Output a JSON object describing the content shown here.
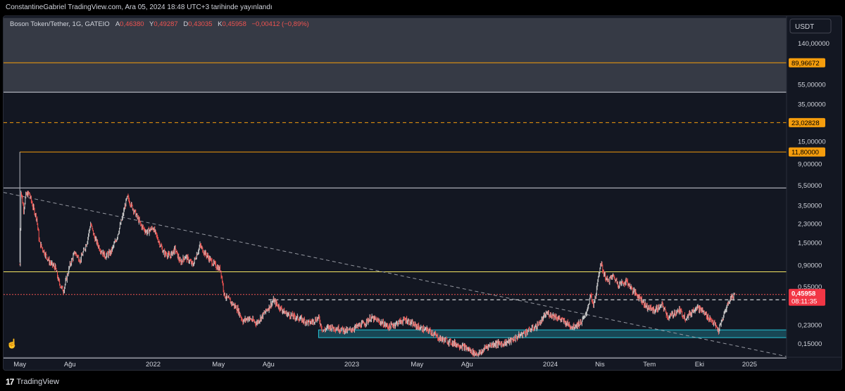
{
  "header": {
    "publish_line": "ConstantineGabriel TradingView.com, Ara 05, 2024 18:48 UTC+3 tarihinde yayınlandı"
  },
  "legend": {
    "symbol": "Boson Token/Tether, 1G, GATEIO",
    "o_key": "A",
    "o_val": "0,46380",
    "h_key": "Y",
    "h_val": "0,49287",
    "l_key": "D",
    "l_val": "0,43035",
    "c_key": "K",
    "c_val": "0,45958",
    "change": "−0,00412 (−0,89%)"
  },
  "footer": {
    "brand": "TradingView"
  },
  "colors": {
    "background": "#131722",
    "candle_up": "#c8c8c8",
    "candle_down": "#ef5350",
    "accent_orange": "#f59d0d",
    "accent_yellow": "#f5e663",
    "zone": "#26c6da",
    "price_red": "#f23645"
  },
  "chart_data": {
    "type": "candlestick",
    "title": "Boson Token/Tether, 1G, GATEIO",
    "currency": "USDT",
    "y_scale": "log",
    "ylim": [
      0.11,
      260
    ],
    "xlim": [
      "2021-04-01",
      "2025-03-10"
    ],
    "grid": false,
    "x_ticks": [
      {
        "label": "May",
        "date": "2021-05-01"
      },
      {
        "label": "Ağu",
        "date": "2021-08-01"
      },
      {
        "label": "2022",
        "date": "2022-01-01"
      },
      {
        "label": "May",
        "date": "2022-05-01"
      },
      {
        "label": "Ağu",
        "date": "2022-08-01"
      },
      {
        "label": "2023",
        "date": "2023-01-01"
      },
      {
        "label": "May",
        "date": "2023-05-01"
      },
      {
        "label": "Ağu",
        "date": "2023-08-01"
      },
      {
        "label": "2024",
        "date": "2024-01-01"
      },
      {
        "label": "Nis",
        "date": "2024-04-01"
      },
      {
        "label": "Tem",
        "date": "2024-07-01"
      },
      {
        "label": "Eki",
        "date": "2024-10-01"
      },
      {
        "label": "2025",
        "date": "2025-01-01"
      }
    ],
    "y_ticks": [
      {
        "label": "140,00000",
        "value": 140
      },
      {
        "label": "55,00000",
        "value": 55
      },
      {
        "label": "35,00000",
        "value": 35
      },
      {
        "label": "15,00000",
        "value": 15
      },
      {
        "label": "9,00000",
        "value": 9
      },
      {
        "label": "5,50000",
        "value": 5.5
      },
      {
        "label": "3,50000",
        "value": 3.5
      },
      {
        "label": "2,30000",
        "value": 2.3
      },
      {
        "label": "1,50000",
        "value": 1.5
      },
      {
        "label": "0,90000",
        "value": 0.9
      },
      {
        "label": "0,55000",
        "value": 0.55
      },
      {
        "label": "0,23000",
        "value": 0.23
      },
      {
        "label": "0,15000",
        "value": 0.15
      }
    ],
    "price_path": [
      [
        "2021-05-01",
        0.9
      ],
      [
        "2021-05-03",
        4.9
      ],
      [
        "2021-05-08",
        3.2
      ],
      [
        "2021-05-12",
        4.4
      ],
      [
        "2021-05-18",
        4.6
      ],
      [
        "2021-05-25",
        3.4
      ],
      [
        "2021-06-01",
        2.6
      ],
      [
        "2021-06-06",
        1.5
      ],
      [
        "2021-06-15",
        1.2
      ],
      [
        "2021-06-25",
        0.95
      ],
      [
        "2021-07-05",
        0.85
      ],
      [
        "2021-07-12",
        0.6
      ],
      [
        "2021-07-20",
        0.5
      ],
      [
        "2021-08-01",
        0.9
      ],
      [
        "2021-08-10",
        1.2
      ],
      [
        "2021-08-20",
        1.0
      ],
      [
        "2021-09-01",
        1.5
      ],
      [
        "2021-09-08",
        2.3
      ],
      [
        "2021-09-15",
        1.7
      ],
      [
        "2021-09-25",
        1.3
      ],
      [
        "2021-10-05",
        1.1
      ],
      [
        "2021-10-15",
        1.2
      ],
      [
        "2021-10-25",
        1.6
      ],
      [
        "2021-11-05",
        2.6
      ],
      [
        "2021-11-12",
        3.8
      ],
      [
        "2021-11-15",
        4.2
      ],
      [
        "2021-11-22",
        3.5
      ],
      [
        "2021-12-01",
        2.8
      ],
      [
        "2021-12-10",
        2.2
      ],
      [
        "2021-12-20",
        1.9
      ],
      [
        "2022-01-01",
        2.1
      ],
      [
        "2022-01-10",
        1.6
      ],
      [
        "2022-01-20",
        1.2
      ],
      [
        "2022-02-01",
        1.1
      ],
      [
        "2022-02-10",
        1.3
      ],
      [
        "2022-02-20",
        0.95
      ],
      [
        "2022-03-01",
        1.1
      ],
      [
        "2022-03-15",
        0.9
      ],
      [
        "2022-03-28",
        1.4
      ],
      [
        "2022-04-05",
        1.2
      ],
      [
        "2022-04-20",
        0.95
      ],
      [
        "2022-05-05",
        0.8
      ],
      [
        "2022-05-12",
        0.45
      ],
      [
        "2022-05-25",
        0.38
      ],
      [
        "2022-06-05",
        0.33
      ],
      [
        "2022-06-15",
        0.25
      ],
      [
        "2022-06-25",
        0.27
      ],
      [
        "2022-07-10",
        0.24
      ],
      [
        "2022-07-20",
        0.28
      ],
      [
        "2022-08-01",
        0.34
      ],
      [
        "2022-08-10",
        0.4
      ],
      [
        "2022-08-20",
        0.35
      ],
      [
        "2022-09-01",
        0.3
      ],
      [
        "2022-09-15",
        0.28
      ],
      [
        "2022-10-01",
        0.26
      ],
      [
        "2022-10-15",
        0.24
      ],
      [
        "2022-11-01",
        0.27
      ],
      [
        "2022-11-09",
        0.2
      ],
      [
        "2022-11-20",
        0.22
      ],
      [
        "2022-12-10",
        0.21
      ],
      [
        "2022-12-25",
        0.2
      ],
      [
        "2023-01-10",
        0.22
      ],
      [
        "2023-01-25",
        0.24
      ],
      [
        "2023-02-05",
        0.27
      ],
      [
        "2023-02-20",
        0.25
      ],
      [
        "2023-03-10",
        0.22
      ],
      [
        "2023-03-25",
        0.24
      ],
      [
        "2023-04-10",
        0.26
      ],
      [
        "2023-04-25",
        0.23
      ],
      [
        "2023-05-10",
        0.21
      ],
      [
        "2023-05-25",
        0.2
      ],
      [
        "2023-06-10",
        0.17
      ],
      [
        "2023-06-25",
        0.16
      ],
      [
        "2023-07-10",
        0.15
      ],
      [
        "2023-07-25",
        0.14
      ],
      [
        "2023-08-05",
        0.13
      ],
      [
        "2023-08-15",
        0.12
      ],
      [
        "2023-08-25",
        0.12
      ],
      [
        "2023-09-05",
        0.14
      ],
      [
        "2023-09-20",
        0.15
      ],
      [
        "2023-10-05",
        0.15
      ],
      [
        "2023-10-20",
        0.16
      ],
      [
        "2023-11-05",
        0.18
      ],
      [
        "2023-11-20",
        0.2
      ],
      [
        "2023-12-05",
        0.22
      ],
      [
        "2023-12-15",
        0.25
      ],
      [
        "2023-12-25",
        0.3
      ],
      [
        "2024-01-10",
        0.28
      ],
      [
        "2024-01-25",
        0.25
      ],
      [
        "2024-02-10",
        0.22
      ],
      [
        "2024-02-25",
        0.24
      ],
      [
        "2024-03-05",
        0.28
      ],
      [
        "2024-03-15",
        0.45
      ],
      [
        "2024-03-20",
        0.35
      ],
      [
        "2024-03-27",
        0.55
      ],
      [
        "2024-04-02",
        0.95
      ],
      [
        "2024-04-08",
        0.75
      ],
      [
        "2024-04-15",
        0.62
      ],
      [
        "2024-04-25",
        0.7
      ],
      [
        "2024-05-05",
        0.58
      ],
      [
        "2024-05-20",
        0.62
      ],
      [
        "2024-06-01",
        0.5
      ],
      [
        "2024-06-15",
        0.42
      ],
      [
        "2024-06-25",
        0.35
      ],
      [
        "2024-07-10",
        0.32
      ],
      [
        "2024-07-25",
        0.36
      ],
      [
        "2024-08-05",
        0.27
      ],
      [
        "2024-08-15",
        0.3
      ],
      [
        "2024-08-25",
        0.32
      ],
      [
        "2024-09-05",
        0.27
      ],
      [
        "2024-09-15",
        0.3
      ],
      [
        "2024-09-25",
        0.35
      ],
      [
        "2024-10-05",
        0.32
      ],
      [
        "2024-10-15",
        0.28
      ],
      [
        "2024-10-25",
        0.25
      ],
      [
        "2024-11-05",
        0.2
      ],
      [
        "2024-11-12",
        0.26
      ],
      [
        "2024-11-20",
        0.35
      ],
      [
        "2024-11-28",
        0.43
      ],
      [
        "2024-12-05",
        0.46
      ]
    ],
    "horizontal_lines": [
      {
        "price": 89.96672,
        "label": "89,96672",
        "color": "#f59d0d",
        "style": "solid",
        "from": "2021-04-01"
      },
      {
        "price": 46,
        "label": "",
        "color": "#d1d4dc",
        "style": "solid",
        "from": "2021-04-01"
      },
      {
        "price": 23.02828,
        "label": "23,02828",
        "color": "#f59d0d",
        "style": "dashed",
        "from": "2021-04-01"
      },
      {
        "price": 11.8,
        "label": "11,80000",
        "color": "#f59d0d",
        "style": "solid",
        "from": "2021-05-01"
      },
      {
        "price": 5.2,
        "label": "",
        "color": "#d1d4dc",
        "style": "solid",
        "from": "2021-04-01"
      },
      {
        "price": 0.77,
        "label": "",
        "color": "#f5e663",
        "style": "solid",
        "from": "2021-04-01"
      },
      {
        "price": 0.4074,
        "label": "0,40740",
        "color": "#ffffff",
        "style": "dashed",
        "from": "2022-08-01"
      },
      {
        "price": 0.45958,
        "label": "0,45958",
        "color": "#ef5350",
        "style": "dotted",
        "from": "2021-04-01"
      },
      {
        "price": 0.108,
        "label": "",
        "color": "#d1d4dc",
        "style": "solid",
        "from": "2021-04-01"
      }
    ],
    "upper_zone": {
      "from_price": 46,
      "to_price": 250
    },
    "support_zone": {
      "from_price": 0.172,
      "to_price": 0.205,
      "from": "2022-11-01",
      "to": "2025-03-10"
    },
    "trendline": {
      "from": [
        "2021-04-01",
        4.7
      ],
      "to": [
        "2025-03-10",
        0.112
      ]
    },
    "current_price": {
      "label": "0,45958",
      "countdown": "08:11:35"
    }
  }
}
